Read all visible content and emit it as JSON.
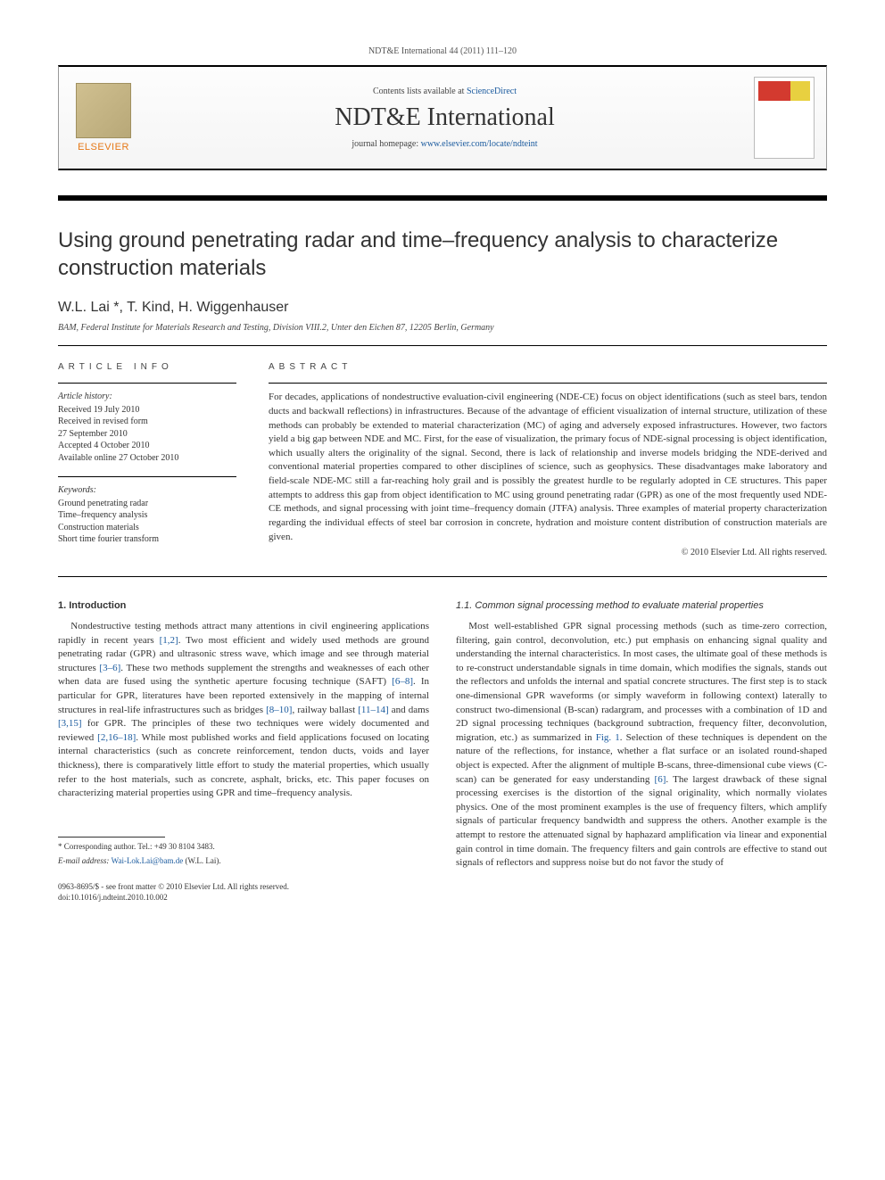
{
  "header": {
    "citation": "NDT&E International 44 (2011) 111–120"
  },
  "banner": {
    "contents_text": "Contents lists available at ",
    "contents_link": "ScienceDirect",
    "journal_title": "NDT&E International",
    "homepage_text": "journal homepage: ",
    "homepage_link": "www.elsevier.com/locate/ndteint",
    "publisher": "ELSEVIER"
  },
  "article": {
    "title": "Using ground penetrating radar and time–frequency analysis to characterize construction materials",
    "authors": "W.L. Lai *, T. Kind, H. Wiggenhauser",
    "affiliation": "BAM, Federal Institute for Materials Research and Testing, Division VIII.2, Unter den Eichen 87, 12205 Berlin, Germany"
  },
  "info": {
    "label": "article info",
    "history_head": "Article history:",
    "history_1": "Received 19 July 2010",
    "history_2": "Received in revised form",
    "history_3": "27 September 2010",
    "history_4": "Accepted 4 October 2010",
    "history_5": "Available online 27 October 2010",
    "keywords_head": "Keywords:",
    "kw1": "Ground penetrating radar",
    "kw2": "Time–frequency analysis",
    "kw3": "Construction materials",
    "kw4": "Short time fourier transform"
  },
  "abstract": {
    "label": "abstract",
    "text": "For decades, applications of nondestructive evaluation-civil engineering (NDE-CE) focus on object identifications (such as steel bars, tendon ducts and backwall reflections) in infrastructures. Because of the advantage of efficient visualization of internal structure, utilization of these methods can probably be extended to material characterization (MC) of aging and adversely exposed infrastructures. However, two factors yield a big gap between NDE and MC. First, for the ease of visualization, the primary focus of NDE-signal processing is object identification, which usually alters the originality of the signal. Second, there is lack of relationship and inverse models bridging the NDE-derived and conventional material properties compared to other disciplines of science, such as geophysics. These disadvantages make laboratory and field-scale NDE-MC still a far-reaching holy grail and is possibly the greatest hurdle to be regularly adopted in CE structures. This paper attempts to address this gap from object identification to MC using ground penetrating radar (GPR) as one of the most frequently used NDE-CE methods, and signal processing with joint time–frequency domain (JTFA) analysis. Three examples of material property characterization regarding the individual effects of steel bar corrosion in concrete, hydration and moisture content distribution of construction materials are given.",
    "copyright": "© 2010 Elsevier Ltd. All rights reserved."
  },
  "body": {
    "sec1_head": "1. Introduction",
    "sec1_p1a": "Nondestructive testing methods attract many attentions in civil engineering applications rapidly in recent years ",
    "sec1_r1": "[1,2]",
    "sec1_p1b": ". Two most efficient and widely used methods are ground penetrating radar (GPR) and ultrasonic stress wave, which image and see through material structures ",
    "sec1_r2": "[3–6]",
    "sec1_p1c": ". These two methods supplement the strengths and weaknesses of each other when data are fused using the synthetic aperture focusing technique (SAFT) ",
    "sec1_r3": "[6–8]",
    "sec1_p1d": ". In particular for GPR, literatures have been reported extensively in the mapping of internal structures in real-life infrastructures such as bridges ",
    "sec1_r4": "[8–10]",
    "sec1_p1e": ", railway ballast ",
    "sec1_r5": "[11–14]",
    "sec1_p1f": " and dams ",
    "sec1_r6": "[3,15]",
    "sec1_p1g": " for GPR. The principles of these two techniques were widely documented and reviewed ",
    "sec1_r7": "[2,16–18]",
    "sec1_p1h": ". While most published works and field applications focused on locating internal characteristics (such as concrete reinforcement, tendon ducts, voids and layer thickness), there is comparatively little effort to study the material properties, which usually refer to the host materials, such as concrete, asphalt, bricks, etc. This paper focuses on characterizing material properties using GPR and time–frequency analysis.",
    "sec11_head": "1.1. Common signal processing method to evaluate material properties",
    "sec11_p1a": "Most well-established GPR signal processing methods (such as time-zero correction, filtering, gain control, deconvolution, etc.) put emphasis on enhancing signal quality and understanding the internal characteristics. In most cases, the ultimate goal of these methods is to re-construct understandable signals in time domain, which modifies the signals, stands out the reflectors and unfolds the internal and spatial concrete structures. The first step is to stack one-dimensional GPR waveforms (or simply waveform in following context) laterally to construct two-dimensional (B-scan) radargram, and processes with a combination of 1D and 2D signal processing techniques (background subtraction, frequency filter, deconvolution, migration, etc.) as summarized in ",
    "sec11_r1": "Fig. 1",
    "sec11_p1b": ". Selection of these techniques is dependent on the nature of the reflections, for instance, whether a flat surface or an isolated round-shaped object is expected. After the alignment of multiple B-scans, three-dimensional cube views (C-scan) can be generated for easy understanding ",
    "sec11_r2": "[6]",
    "sec11_p1c": ". The largest drawback of these signal processing exercises is the distortion of the signal originality, which normally violates physics. One of the most prominent examples is the use of frequency filters, which amplify signals of particular frequency bandwidth and suppress the others. Another example is the attempt to restore the attenuated signal by haphazard amplification via linear and exponential gain control in time domain. The frequency filters and gain controls are effective to stand out signals of reflectors and suppress noise but do not favor the study of"
  },
  "footnote": {
    "corr": "* Corresponding author. Tel.: +49 30 8104 3483.",
    "email_label": "E-mail address: ",
    "email": "Wai-Lok.Lai@bam.de",
    "email_who": " (W.L. Lai)."
  },
  "bottom": {
    "line1": "0963-8695/$ - see front matter © 2010 Elsevier Ltd. All rights reserved.",
    "line2": "doi:10.1016/j.ndteint.2010.10.002"
  }
}
